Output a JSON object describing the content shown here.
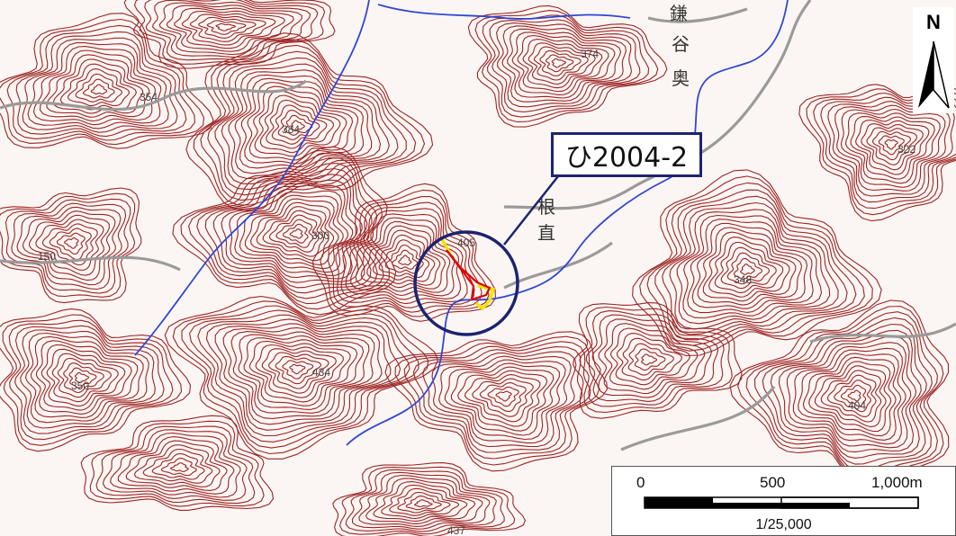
{
  "map": {
    "callout_label": "ひ2004-2",
    "north_label": "N",
    "scale": {
      "ticks": [
        "0",
        "500",
        "1,000m"
      ],
      "ratio": "1/25,000"
    },
    "spot_heights": [
      "354",
      "384",
      "374",
      "322",
      "150",
      "300",
      "405",
      "348",
      "350",
      "434",
      "404",
      "437"
    ],
    "place_labels": [
      "鎌",
      "谷",
      "奥",
      "根",
      "直"
    ],
    "colors": {
      "contour": "#9c2424",
      "river": "#2f47d6",
      "road": "#9a9a9a",
      "circle": "#1c2470",
      "landslide_outline": "#e00000",
      "landslide_deposit": "#f2e400"
    }
  }
}
